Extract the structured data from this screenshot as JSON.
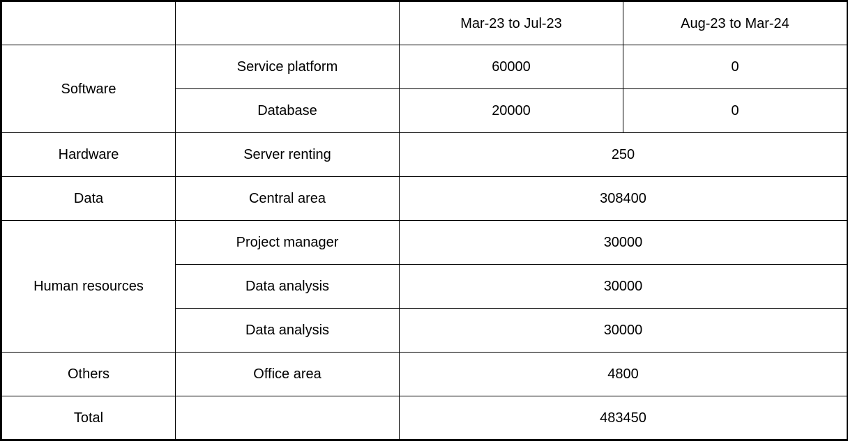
{
  "header": {
    "col1": "",
    "col2": "",
    "period1": "Mar-23 to Jul-23",
    "period2": "Aug-23 to Mar-24"
  },
  "software": {
    "category": "Software",
    "rows": [
      {
        "item": "Service platform",
        "period1": "60000",
        "period2": "0"
      },
      {
        "item": "Database",
        "period1": "20000",
        "period2": "0"
      }
    ]
  },
  "hardware": {
    "category": "Hardware",
    "item": "Server renting",
    "value": "250"
  },
  "data": {
    "category": "Data",
    "item": "Central area",
    "value": "308400"
  },
  "human_resources": {
    "category": "Human resources",
    "rows": [
      {
        "item": "Project manager",
        "value": "30000"
      },
      {
        "item": "Data analysis",
        "value": "30000"
      },
      {
        "item": "Data analysis",
        "value": "30000"
      }
    ]
  },
  "others": {
    "category": "Others",
    "item": "Office area",
    "value": "4800"
  },
  "total": {
    "label": "Total",
    "item": "",
    "value": "483450"
  }
}
